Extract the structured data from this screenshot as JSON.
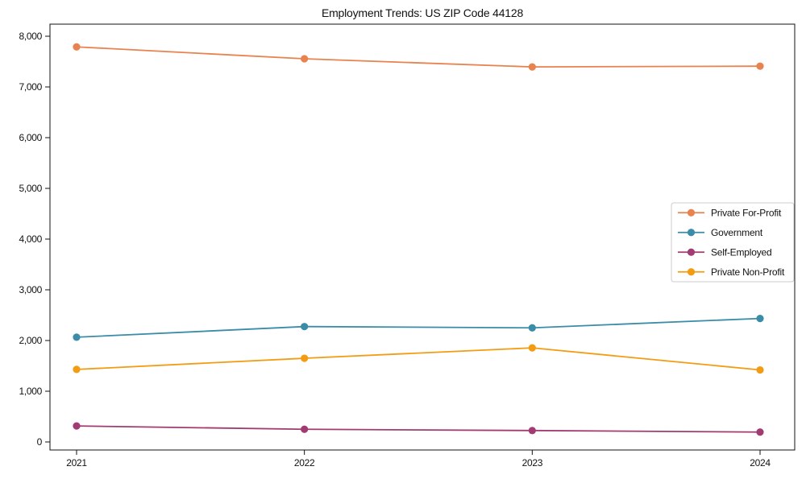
{
  "chart_data": {
    "type": "line",
    "title": "Employment Trends: US ZIP Code 44128",
    "categories": [
      "2021",
      "2022",
      "2023",
      "2024"
    ],
    "series": [
      {
        "name": "Private For-Profit",
        "color": "#E8824E",
        "values": [
          7790,
          7555,
          7395,
          7410
        ]
      },
      {
        "name": "Government",
        "color": "#3A8CA9",
        "values": [
          2065,
          2275,
          2250,
          2435
        ]
      },
      {
        "name": "Self-Employed",
        "color": "#A23B72",
        "values": [
          315,
          250,
          225,
          195
        ]
      },
      {
        "name": "Private Non-Profit",
        "color": "#F39C12",
        "values": [
          1430,
          1650,
          1855,
          1420
        ]
      }
    ],
    "xlabel": "",
    "ylabel": "",
    "ylim": [
      0,
      8250
    ],
    "yticks": [
      0,
      1000,
      2000,
      3000,
      4000,
      5000,
      6000,
      7000,
      8000
    ],
    "ytick_labels": [
      "0",
      "1,000",
      "2,000",
      "3,000",
      "4,000",
      "5,000",
      "6,000",
      "7,000",
      "8,000"
    ],
    "grid": false,
    "marker": "circle",
    "legend_position": "center-right",
    "axis_color": "#111111",
    "legend_border_color": "#cccccc",
    "background_color": "#ffffff"
  }
}
